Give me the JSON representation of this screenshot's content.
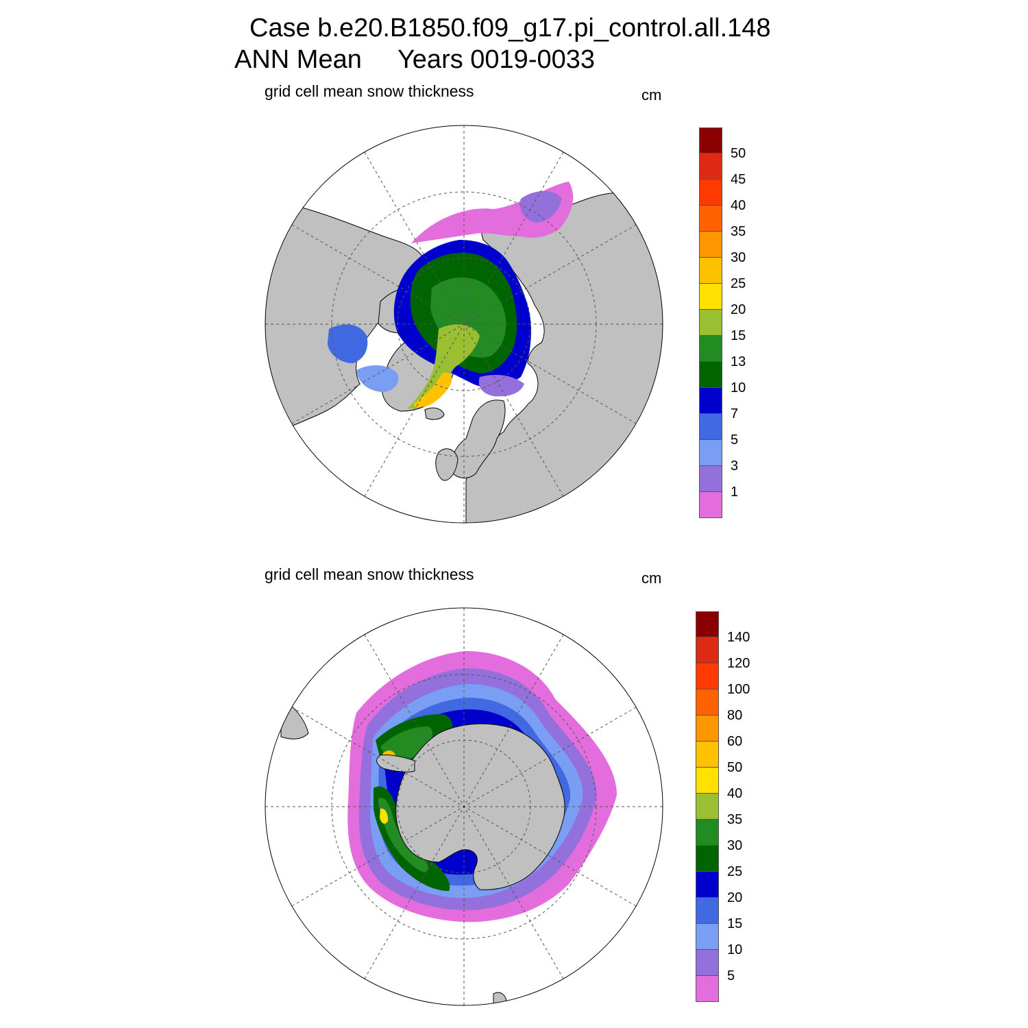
{
  "header": {
    "line1": "Case b.e20.B1850.f09_g17.pi_control.all.148",
    "line2": "ANN Mean     Years 0019-0033"
  },
  "colors": {
    "land": "#c0c0c0",
    "ocean": "#ffffff",
    "gridline": "#555555"
  },
  "panels": [
    {
      "id": "north",
      "label": "grid cell mean snow thickness",
      "units": "cm",
      "hemisphere": "north",
      "colorbar": {
        "colors": [
          "#8b0000",
          "#dc2a14",
          "#ff3a00",
          "#ff6200",
          "#ff9600",
          "#ffc200",
          "#ffe000",
          "#9bbf32",
          "#228b22",
          "#006400",
          "#0000cd",
          "#4169e1",
          "#7b9ef5",
          "#9370db",
          "#e36ddc"
        ],
        "labels": [
          "50",
          "45",
          "40",
          "35",
          "30",
          "25",
          "20",
          "15",
          "13",
          "10",
          "7",
          "5",
          "3",
          "1"
        ]
      }
    },
    {
      "id": "south",
      "label": "grid cell mean snow thickness",
      "units": "cm",
      "hemisphere": "south",
      "colorbar": {
        "colors": [
          "#8b0000",
          "#dc2a14",
          "#ff3a00",
          "#ff6200",
          "#ff9600",
          "#ffc200",
          "#ffe000",
          "#9bbf32",
          "#228b22",
          "#006400",
          "#0000cd",
          "#4169e1",
          "#7b9ef5",
          "#9370db",
          "#e36ddc"
        ],
        "labels": [
          "140",
          "120",
          "100",
          "80",
          "60",
          "50",
          "40",
          "35",
          "30",
          "25",
          "20",
          "15",
          "10",
          "5"
        ]
      }
    }
  ]
}
